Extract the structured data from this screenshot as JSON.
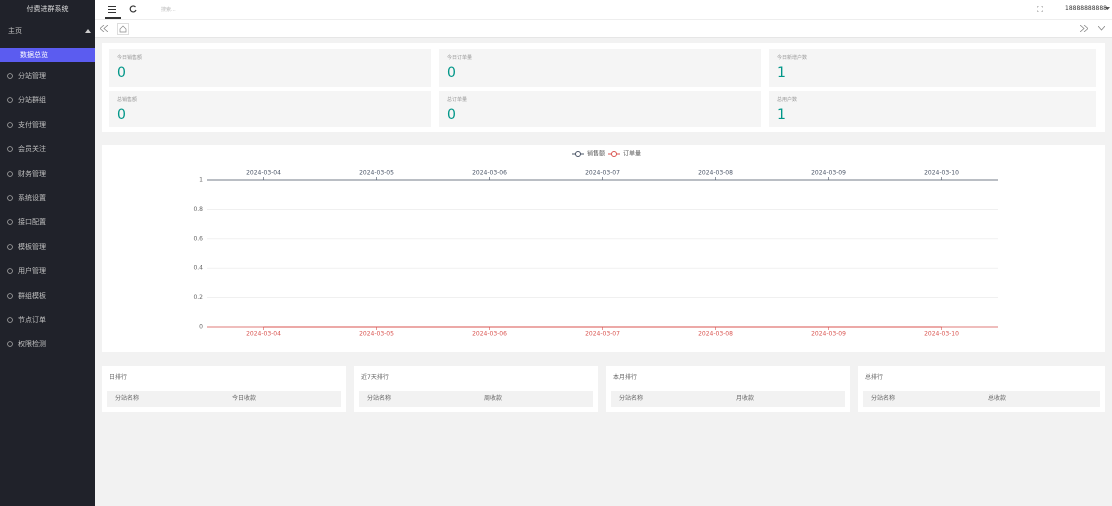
{
  "sidebar": {
    "title": "付费进群系统",
    "home": "主页",
    "active": "数据总览",
    "menu": [
      "分站管理",
      "分站群组",
      "支付管理",
      "会员关注",
      "财务管理",
      "系统设置",
      "接口配置",
      "模板管理",
      "用户管理",
      "群组模板",
      "节点订单",
      "权限检测"
    ]
  },
  "topbar": {
    "search": "搜索...",
    "user": "18888888888"
  },
  "stats": [
    {
      "label": "今日销售额",
      "value": 0
    },
    {
      "label": "今日订单量",
      "value": 0
    },
    {
      "label": "今日新增户数",
      "value": 1
    },
    {
      "label": "总销售额",
      "value": 0
    },
    {
      "label": "总订单量",
      "value": 0
    },
    {
      "label": "总用户数",
      "value": 1
    }
  ],
  "chart_data": {
    "type": "line",
    "categories": [
      "2024-03-04",
      "2024-03-05",
      "2024-03-06",
      "2024-03-07",
      "2024-03-08",
      "2024-03-09",
      "2024-03-10"
    ],
    "series": [
      {
        "name": "销售额",
        "color": "#4a5466",
        "values": [
          0,
          0,
          0,
          0,
          0,
          0,
          0
        ]
      },
      {
        "name": "订单量",
        "color": "#d9534f",
        "values": [
          0,
          0,
          0,
          0,
          0,
          0,
          0
        ]
      }
    ],
    "ylim": [
      0,
      1
    ],
    "yticks": [
      0,
      0.2,
      0.4,
      0.6,
      0.8,
      1
    ],
    "grid": true
  },
  "rankings": [
    {
      "title": "日排行",
      "columns": [
        "分站名称",
        "今日收款"
      ]
    },
    {
      "title": "近7天排行",
      "columns": [
        "分站名称",
        "周收款"
      ]
    },
    {
      "title": "本月排行",
      "columns": [
        "分站名称",
        "月收款"
      ]
    },
    {
      "title": "总排行",
      "columns": [
        "分站名称",
        "总收款"
      ]
    }
  ]
}
